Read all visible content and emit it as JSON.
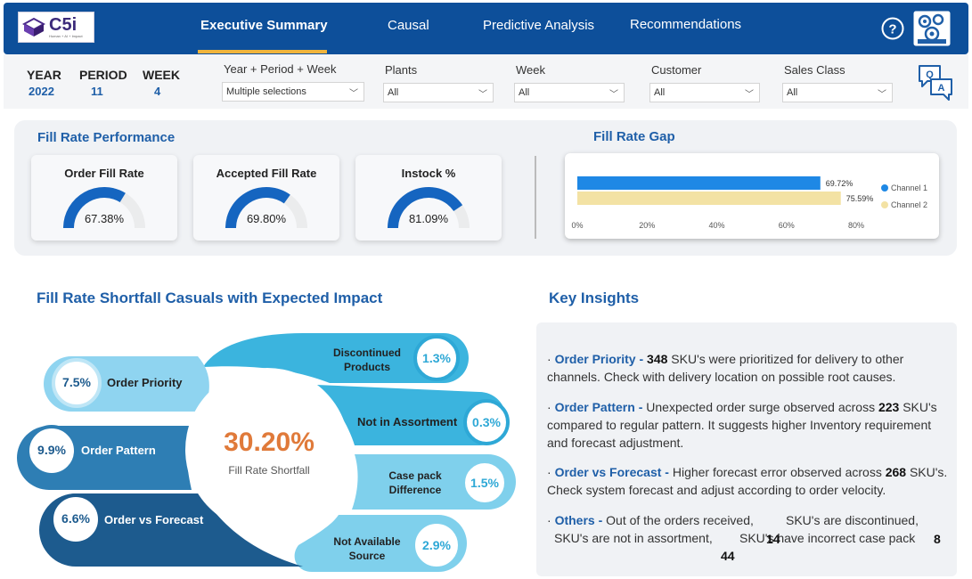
{
  "header": {
    "logo_text": "C5i",
    "logo_tagline": "Human + AI + Impact",
    "tabs": [
      "Executive Summary",
      "Causal",
      "Predictive Analysis",
      "Recommendations"
    ],
    "active_tab": "Executive Summary",
    "help_icon": "question-circle-icon",
    "settings_icon": "gears-icon"
  },
  "filters": {
    "year_label": "YEAR",
    "year_value": "2022",
    "period_label": "PERIOD",
    "period_value": "11",
    "week_label": "WEEK",
    "week_value": "4",
    "dropdowns": [
      {
        "label": "Year + Period + Week",
        "value": "Multiple selections"
      },
      {
        "label": "Plants",
        "value": "All"
      },
      {
        "label": "Week",
        "value": "All"
      },
      {
        "label": "Customer",
        "value": "All"
      },
      {
        "label": "Sales Class",
        "value": "All"
      }
    ],
    "qa_icon": "qa-icon"
  },
  "performance": {
    "title": "Fill Rate Performance",
    "kpis": [
      {
        "title": "Order Fill Rate",
        "value": "67.38%",
        "pct": 67.38
      },
      {
        "title": "Accepted Fill Rate",
        "value": "69.80%",
        "pct": 69.8
      },
      {
        "title": "Instock %",
        "value": "81.09%",
        "pct": 81.09
      }
    ]
  },
  "gap": {
    "title": "Fill Rate Gap"
  },
  "chart_data": {
    "type": "bar",
    "orientation": "horizontal",
    "title": "Fill Rate Gap",
    "series": [
      {
        "name": "Channel 1",
        "values": [
          69.72
        ],
        "label": "69.72%",
        "color": "#1e88e5"
      },
      {
        "name": "Channel 2",
        "values": [
          75.59
        ],
        "label": "75.59%",
        "color": "#f3e2a4"
      }
    ],
    "xlim": [
      0,
      80
    ],
    "xticks": [
      "0%",
      "20%",
      "40%",
      "60%",
      "80%"
    ],
    "legend": "right"
  },
  "shortfall": {
    "title": "Fill Rate Shortfall Casuals with Expected Impact",
    "center_value": "30.20%",
    "center_label": "Fill Rate Shortfall",
    "left_items": [
      {
        "label": "Order Priority",
        "value": "7.5%"
      },
      {
        "label": "Order Pattern",
        "value": "9.9%"
      },
      {
        "label": "Order vs Forecast",
        "value": "6.6%"
      }
    ],
    "right_items": [
      {
        "label1": "Discontinued",
        "label2": "Products",
        "value": "1.3%"
      },
      {
        "label1": "Not in Assortment",
        "label2": "",
        "value": "0.3%"
      },
      {
        "label1": "Case pack",
        "label2": "Difference",
        "value": "1.5%"
      },
      {
        "label1": "Not Available",
        "label2": "Source",
        "value": "2.9%"
      }
    ]
  },
  "insights": {
    "title": "Key Insights",
    "items": [
      {
        "key": "Order Priority - ",
        "num": "348",
        "text1": " SKU's were prioritized for delivery to other channels. Check with delivery location on possible root causes."
      },
      {
        "key": "Order Pattern - ",
        "text0": "Unexpected order surge observed across ",
        "num": "223",
        "text1": " SKU's compared to regular pattern. It suggests higher Inventory requirement and forecast adjustment."
      },
      {
        "key": "Order vs Forecast - ",
        "text0": "Higher forecast error observed across ",
        "num": "268",
        "text1": " SKU's. Check system forecast and adjust according to order velocity."
      },
      {
        "key": "Others - ",
        "text0": "Out of the orders received,",
        "text_a": "SKU's are discontinued,",
        "text_b": "SKU's are not in assortment,",
        "text_c": "SKU's have incorrect case pack",
        "num_a": "14",
        "num_b": "8",
        "num_c": "44"
      }
    ]
  }
}
